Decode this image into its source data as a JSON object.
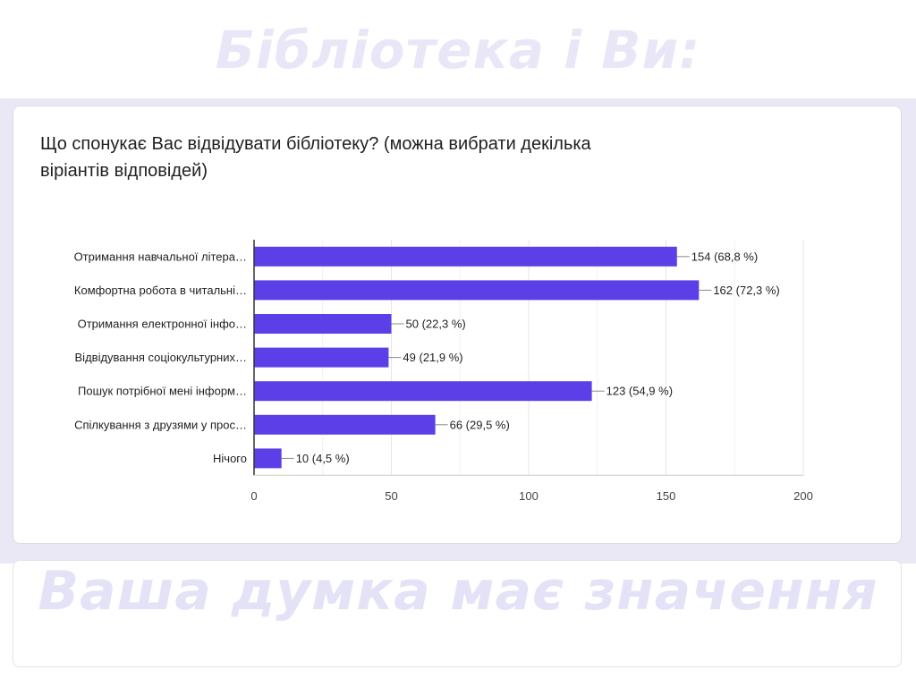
{
  "overlay": {
    "top_text": "Бібліотека і Ви:",
    "bottom_text": "Ваша думка має значення"
  },
  "question": "Що спонукає Вас відвідувати бібліотеку? (можна вибрати декілька віріантів відповідей)",
  "colors": {
    "bar": "#5c3fe6",
    "grid": "#e6e6e6",
    "axis": "#333333"
  },
  "chart_data": {
    "type": "bar",
    "orientation": "horizontal",
    "categories": [
      "Отримання навчальної літера…",
      "Комфортна робота в читальні…",
      "Отримання електронної інфо…",
      "Відвідування соціокультурних…",
      "Пошук потрібної мені інформ…",
      "Спілкування з друзями у прос…",
      "Нічого"
    ],
    "values": [
      154,
      162,
      50,
      49,
      123,
      66,
      10
    ],
    "value_labels": [
      "154 (68,8 %)",
      "162 (72,3 %)",
      "50 (22,3 %)",
      "49 (21,9 %)",
      "123 (54,9 %)",
      "66 (29,5 %)",
      "10 (4,5 %)"
    ],
    "xlim": [
      0,
      200
    ],
    "xticks": [
      0,
      50,
      100,
      150,
      200
    ],
    "grid": true
  }
}
